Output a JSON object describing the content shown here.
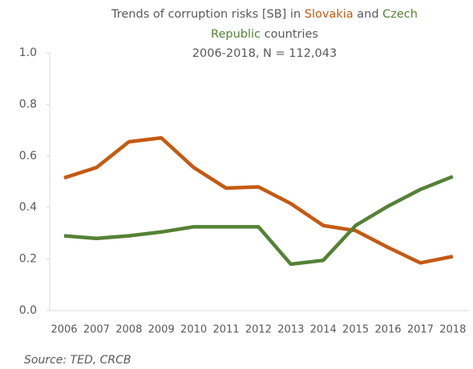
{
  "chart_data": {
    "type": "line",
    "title_lines": [
      [
        "Trends of corruption risks [SB] in",
        "Slovakia",
        "and",
        "Czech"
      ],
      [
        "Republic",
        "countries"
      ]
    ],
    "subtitle": "2006-2018, N = 112,043",
    "source": "Source: TED, CRCB",
    "categories": [
      "2006",
      "2007",
      "2008",
      "2009",
      "2010",
      "2011",
      "2012",
      "2013",
      "2014",
      "2015",
      "2016",
      "2017",
      "2018"
    ],
    "series": [
      {
        "name": "Slovakia",
        "color": "#c55a11",
        "values": [
          0.515,
          0.555,
          0.655,
          0.67,
          0.555,
          0.475,
          0.48,
          0.415,
          0.33,
          0.31,
          0.245,
          0.185,
          0.21
        ]
      },
      {
        "name": "Czech Republic",
        "color": "#548235",
        "values": [
          0.29,
          0.28,
          0.29,
          0.305,
          0.325,
          0.325,
          0.325,
          0.18,
          0.195,
          0.33,
          0.405,
          0.47,
          0.52
        ]
      }
    ],
    "ylim": [
      0,
      1
    ],
    "yticks": [
      {
        "value": 0,
        "label": "0.0"
      },
      0.2,
      0.4,
      0.6,
      0.8,
      {
        "value": 1,
        "label": "1.0"
      }
    ],
    "grid": false
  }
}
